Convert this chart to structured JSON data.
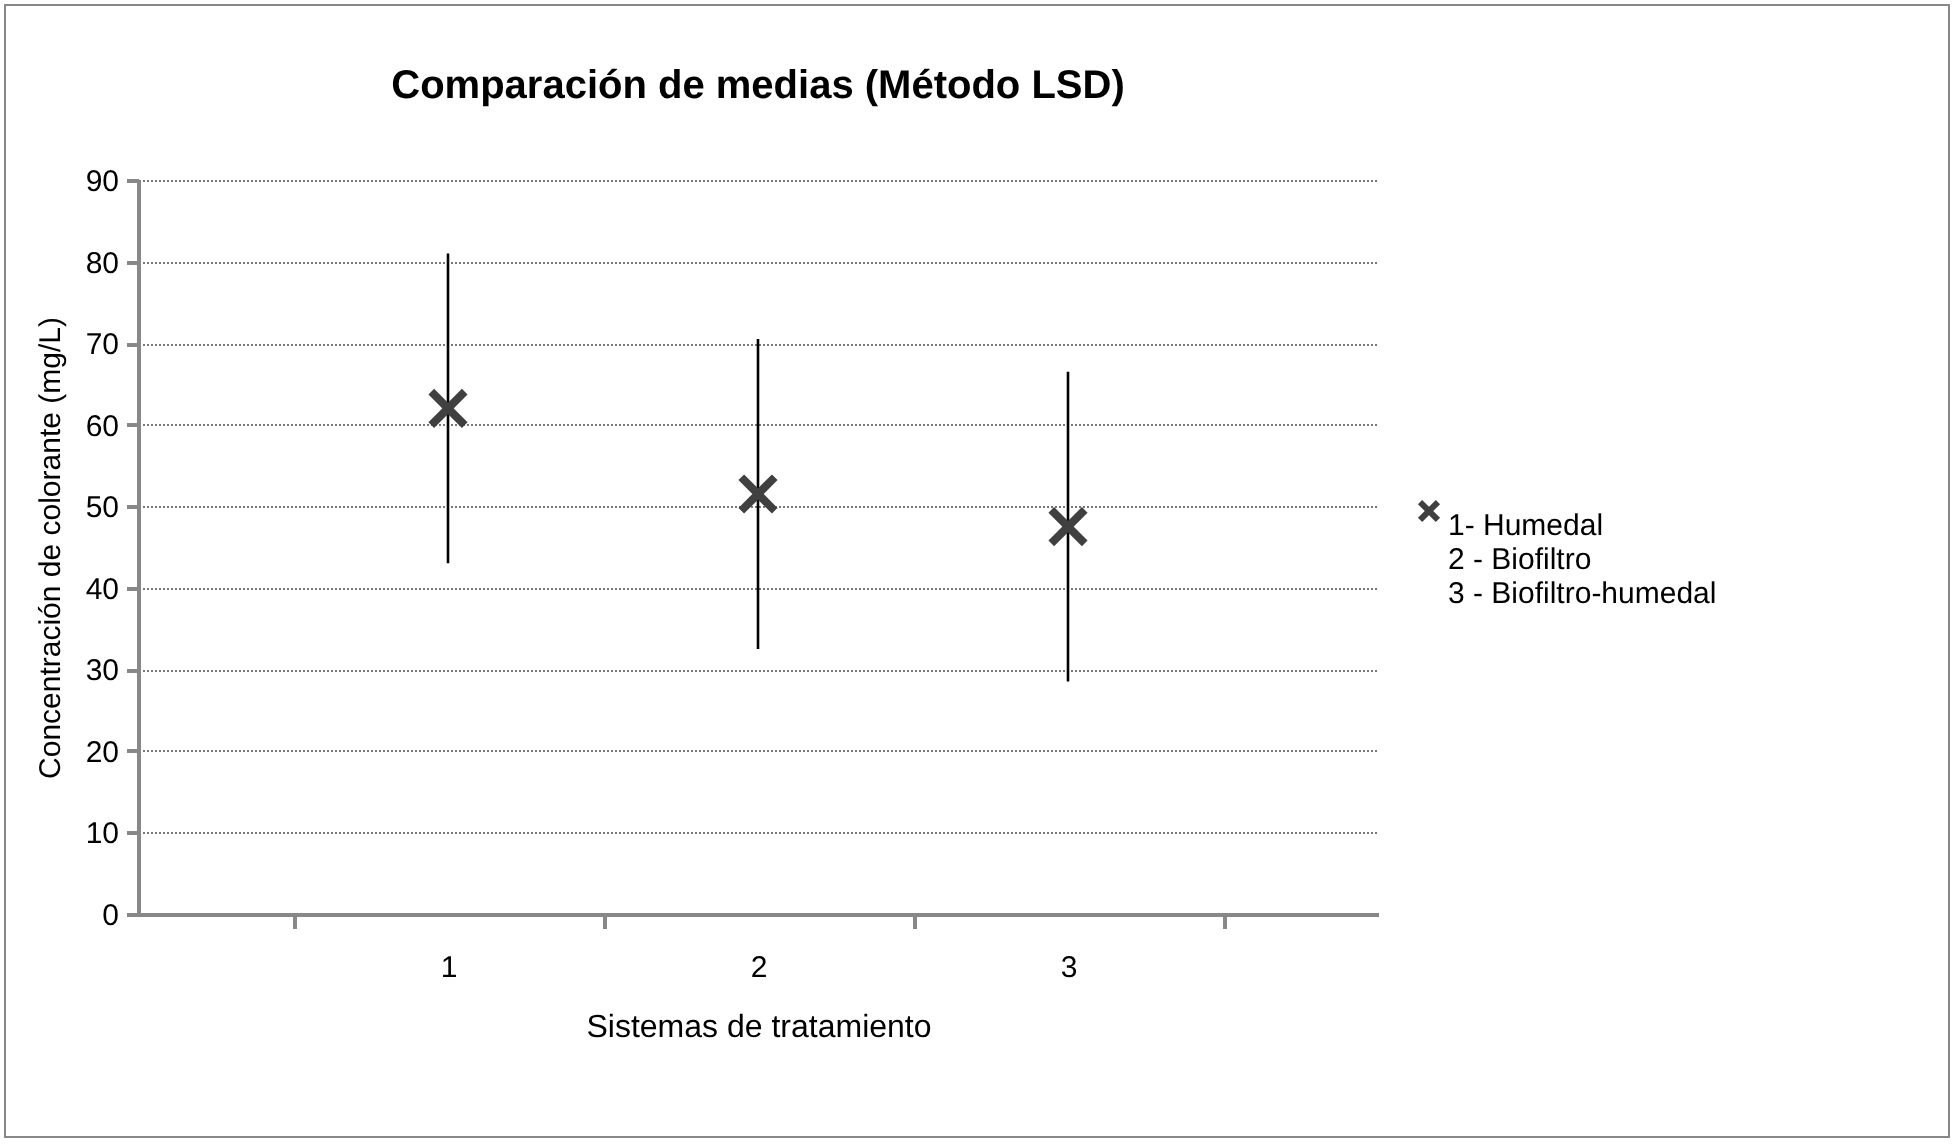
{
  "chart_data": {
    "type": "scatter",
    "title": "Comparación de medias (Método LSD)",
    "xlabel": "Sistemas de tratamiento",
    "ylabel": "Concentración de colorante (mg/L)",
    "categories": [
      "1",
      "2",
      "3"
    ],
    "series": [
      {
        "name": "1- Humedal\n2 - Biofiltro\n3 - Biofiltro-humedal",
        "color": "#404040",
        "values": [
          62,
          51.5,
          47.5
        ],
        "errors": [
          19,
          19,
          19
        ]
      }
    ],
    "ylim": [
      0,
      90
    ],
    "yticks": [
      0,
      10,
      20,
      30,
      40,
      50,
      60,
      70,
      80,
      90
    ],
    "grid": "y",
    "legend": "right",
    "marker": "cross"
  }
}
